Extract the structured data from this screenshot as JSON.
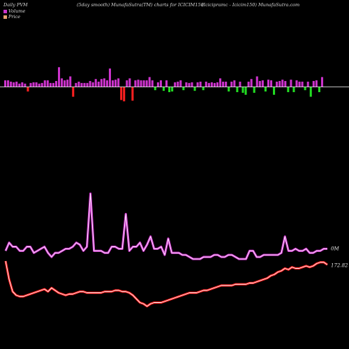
{
  "header": {
    "left": "Daily PVM",
    "middle": "(5day smooth) MunafaSutra(TM) charts for ICICIM150",
    "right": "(Icicipramc - Icicim150) MunafaSutra.com"
  },
  "legend": {
    "volume_label": "Volume",
    "price_label": "Price",
    "volume_color": "#cc33cc",
    "price_color": "#e8a070"
  },
  "colors": {
    "background": "#000000",
    "volume_up": "#cc33cc",
    "volume_down_red": "#ff2020",
    "volume_down_green": "#22dd22",
    "volume_line_outer": "#cc33cc",
    "volume_line_inner": "#ffffff",
    "price_line_outer": "#ff2020",
    "price_line_inner": "#ffffff",
    "baseline": "#ffffff"
  },
  "chart_data": {
    "type": "line",
    "grid": false,
    "series": [
      {
        "name": "Volume",
        "values": [
          1.5,
          1.9,
          1.7,
          1.7,
          1.5,
          1.5,
          1.7,
          1.7,
          1.4,
          1.5,
          1.6,
          1.7,
          1.4,
          1.2,
          1.4,
          1.4,
          1.5,
          1.6,
          1.6,
          1.7,
          1.9,
          1.8,
          1.5,
          1.7,
          4.3,
          1.5,
          1.5,
          1.5,
          1.4,
          1.4,
          1.7,
          1.7,
          1.6,
          1.6,
          3.3,
          1.5,
          1.7,
          1.7,
          1.9,
          1.5,
          1.8,
          2.2,
          1.6,
          1.6,
          1.7,
          1.3,
          2.1,
          1.4,
          1.4,
          1.4,
          1.3,
          1.3,
          1.2,
          1.1,
          1.1,
          1.1,
          1.2,
          1.2,
          1.2,
          1.3,
          1.3,
          1.2,
          1.2,
          1.3,
          1.3,
          1.2,
          1.1,
          1.1,
          1.1,
          1.5,
          1.5,
          1.2,
          1.2,
          1.3,
          1.3,
          1.3,
          1.3,
          1.3,
          1.4,
          2.2,
          1.5,
          1.5,
          1.6,
          1.5,
          1.5,
          1.6,
          1.4,
          1.4,
          1.5,
          1.5,
          1.6,
          1.6
        ]
      },
      {
        "name": "Price",
        "values": [
          173.1,
          171.6,
          170.6,
          170.3,
          170.2,
          170.2,
          170.3,
          170.4,
          170.5,
          170.6,
          170.7,
          170.8,
          170.6,
          170.9,
          170.7,
          170.5,
          170.4,
          170.3,
          170.4,
          170.4,
          170.5,
          170.6,
          170.6,
          170.5,
          170.5,
          170.5,
          170.5,
          170.5,
          170.6,
          170.6,
          170.6,
          170.7,
          170.7,
          170.6,
          170.6,
          170.5,
          170.3,
          170.0,
          169.7,
          169.6,
          169.4,
          169.6,
          169.7,
          169.7,
          169.7,
          169.8,
          169.9,
          170.0,
          170.1,
          170.2,
          170.3,
          170.4,
          170.5,
          170.5,
          170.5,
          170.6,
          170.7,
          170.7,
          170.8,
          170.9,
          171.0,
          171.1,
          171.1,
          171.1,
          171.1,
          171.2,
          171.2,
          171.2,
          171.2,
          171.3,
          171.3,
          171.4,
          171.5,
          171.6,
          171.7,
          171.9,
          172.0,
          172.2,
          172.3,
          172.5,
          172.4,
          172.6,
          172.5,
          172.5,
          172.6,
          172.7,
          172.6,
          172.7,
          172.9,
          173.0,
          173.0,
          172.8
        ]
      }
    ],
    "volume_bars": [
      1.0,
      1.0,
      0.8,
      0.7,
      0.8,
      0.5,
      0.7,
      0.5,
      -0.7,
      0.6,
      0.7,
      0.7,
      0.5,
      0.6,
      1.0,
      1.0,
      0.6,
      0.6,
      0.9,
      3.0,
      1.3,
      1.0,
      1.1,
      1.6,
      -1.5,
      0.6,
      0.8,
      0.6,
      0.6,
      0.6,
      0.9,
      0.7,
      1.2,
      0.8,
      1.2,
      1.3,
      1.0,
      2.8,
      1.0,
      1.1,
      1.3,
      -2.0,
      -2.2,
      1.0,
      1.3,
      -2.1,
      1.0,
      1.1,
      1.0,
      1.0,
      1.0,
      1.5,
      1.0,
      -0.5,
      0.7,
      1.0,
      -0.6,
      1.0,
      -0.8,
      -0.7,
      0.7,
      0.8,
      1.0,
      -0.5,
      0.7,
      0.6,
      0.7,
      -0.6,
      0.7,
      0.8,
      -0.5,
      0.8,
      0.6,
      0.7,
      0.6,
      0.7,
      1.3,
      0.8,
      0.8,
      -0.7,
      0.8,
      1.0,
      -0.8,
      0.8,
      -0.9,
      -1.2,
      0.8,
      1.2,
      -0.9,
      1.6,
      0.9,
      1.0,
      -0.7,
      1.1,
      1.0,
      -1.2,
      0.8,
      0.9,
      1.1,
      0.9,
      -0.8,
      1.1,
      -0.8,
      1.0,
      0.8,
      0.8,
      -0.5,
      0.8,
      -1.5,
      0.9,
      1.0,
      -0.8,
      1.5
    ],
    "volume_bar_colors": [
      "u",
      "u",
      "u",
      "u",
      "u",
      "u",
      "u",
      "u",
      "r",
      "u",
      "u",
      "u",
      "u",
      "u",
      "u",
      "u",
      "u",
      "u",
      "u",
      "u",
      "u",
      "u",
      "u",
      "u",
      "r",
      "u",
      "u",
      "u",
      "u",
      "u",
      "u",
      "u",
      "u",
      "u",
      "u",
      "u",
      "u",
      "u",
      "u",
      "u",
      "u",
      "r",
      "r",
      "u",
      "u",
      "r",
      "u",
      "u",
      "u",
      "u",
      "u",
      "u",
      "u",
      "g",
      "u",
      "u",
      "g",
      "u",
      "g",
      "g",
      "u",
      "u",
      "u",
      "g",
      "u",
      "u",
      "u",
      "g",
      "u",
      "u",
      "g",
      "u",
      "u",
      "u",
      "u",
      "u",
      "u",
      "u",
      "u",
      "g",
      "u",
      "u",
      "g",
      "u",
      "g",
      "g",
      "u",
      "u",
      "g",
      "u",
      "u",
      "u",
      "g",
      "u",
      "u",
      "g",
      "u",
      "u",
      "u",
      "u",
      "g",
      "u",
      "g",
      "u",
      "u",
      "u",
      "g",
      "u",
      "g",
      "u",
      "u",
      "g",
      "u"
    ],
    "annotations": {
      "volume_last_label": "0M",
      "price_last_label": "172.82"
    }
  }
}
